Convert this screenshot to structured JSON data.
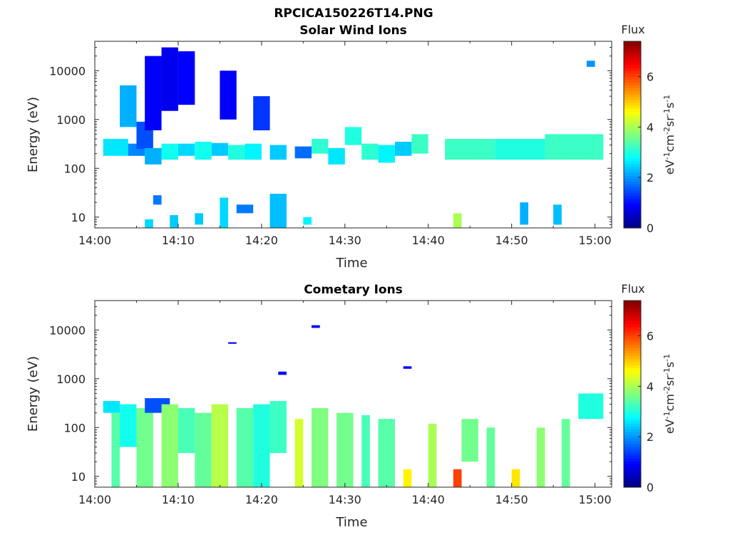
{
  "figure": {
    "title": "RPCICA150226T14.PNG"
  },
  "colorbar": {
    "label": "Flux",
    "unit_parts": [
      "eV",
      "-1",
      "cm",
      "-2",
      "sr",
      "-1",
      "s",
      "-1"
    ],
    "ticks": [
      "0",
      "2",
      "4",
      "6"
    ],
    "range": [
      0,
      7.4
    ],
    "colormap": "jet"
  },
  "chart_data": [
    {
      "type": "heatmap",
      "title": "Solar Wind Ions",
      "xlabel": "Time",
      "ylabel": "Energy (eV)",
      "xtick_labels": [
        "14:00",
        "14:10",
        "14:20",
        "14:30",
        "14:40",
        "14:50",
        "15:00"
      ],
      "ytick_labels": [
        "10",
        "100",
        "1000",
        "10000"
      ],
      "ytick_values": [
        10,
        100,
        1000,
        10000
      ],
      "x_range": [
        "14:00",
        "15:02"
      ],
      "y_range": [
        6,
        40000
      ],
      "y_scale": "log",
      "grid": false,
      "note_values": "flux level 0-7.4, estimated",
      "blocks": [
        {
          "t0": "14:01",
          "t1": "14:04",
          "e0": 180,
          "e1": 400,
          "flux": 2.6
        },
        {
          "t0": "14:03",
          "t1": "14:05",
          "e0": 700,
          "e1": 5000,
          "flux": 2.2
        },
        {
          "t0": "14:04",
          "t1": "14:06",
          "e0": 180,
          "e1": 320,
          "flux": 1.9
        },
        {
          "t0": "14:05",
          "t1": "14:07",
          "e0": 250,
          "e1": 900,
          "flux": 1.5
        },
        {
          "t0": "14:06",
          "t1": "14:08",
          "e0": 600,
          "e1": 20000,
          "flux": 0.9
        },
        {
          "t0": "14:06",
          "t1": "14:08",
          "e0": 120,
          "e1": 260,
          "flux": 2.2
        },
        {
          "t0": "14:06",
          "t1": "14:07",
          "e0": 6,
          "e1": 9,
          "flux": 2.5
        },
        {
          "t0": "14:07",
          "t1": "14:08",
          "e0": 18,
          "e1": 28,
          "flux": 1.8
        },
        {
          "t0": "14:08",
          "t1": "14:10",
          "e0": 150,
          "e1": 320,
          "flux": 2.9
        },
        {
          "t0": "14:08",
          "t1": "14:10",
          "e0": 1500,
          "e1": 30000,
          "flux": 0.8
        },
        {
          "t0": "14:09",
          "t1": "14:10",
          "e0": 6,
          "e1": 11,
          "flux": 2.4
        },
        {
          "t0": "14:10",
          "t1": "14:12",
          "e0": 180,
          "e1": 320,
          "flux": 2.5
        },
        {
          "t0": "14:10",
          "t1": "14:12",
          "e0": 2000,
          "e1": 25000,
          "flux": 0.9
        },
        {
          "t0": "14:12",
          "t1": "14:13",
          "e0": 7,
          "e1": 12,
          "flux": 2.4
        },
        {
          "t0": "14:12",
          "t1": "14:14",
          "e0": 150,
          "e1": 350,
          "flux": 2.9
        },
        {
          "t0": "14:14",
          "t1": "14:16",
          "e0": 180,
          "e1": 330,
          "flux": 2.4
        },
        {
          "t0": "14:15",
          "t1": "14:16",
          "e0": 6,
          "e1": 25,
          "flux": 2.5
        },
        {
          "t0": "14:15",
          "t1": "14:17",
          "e0": 1000,
          "e1": 10000,
          "flux": 0.9
        },
        {
          "t0": "14:16",
          "t1": "14:18",
          "e0": 150,
          "e1": 300,
          "flux": 3.0
        },
        {
          "t0": "14:17",
          "t1": "14:19",
          "e0": 12,
          "e1": 18,
          "flux": 1.8
        },
        {
          "t0": "14:18",
          "t1": "14:20",
          "e0": 150,
          "e1": 320,
          "flux": 2.7
        },
        {
          "t0": "14:19",
          "t1": "14:21",
          "e0": 600,
          "e1": 3000,
          "flux": 1.3
        },
        {
          "t0": "14:21",
          "t1": "14:23",
          "e0": 150,
          "e1": 300,
          "flux": 2.4
        },
        {
          "t0": "14:21",
          "t1": "14:23",
          "e0": 6,
          "e1": 30,
          "flux": 2.3
        },
        {
          "t0": "14:24",
          "t1": "14:26",
          "e0": 160,
          "e1": 280,
          "flux": 1.7
        },
        {
          "t0": "14:25",
          "t1": "14:26",
          "e0": 7,
          "e1": 10,
          "flux": 2.7
        },
        {
          "t0": "14:26",
          "t1": "14:28",
          "e0": 200,
          "e1": 400,
          "flux": 3.1
        },
        {
          "t0": "14:28",
          "t1": "14:30",
          "e0": 120,
          "e1": 260,
          "flux": 2.6
        },
        {
          "t0": "14:30",
          "t1": "14:32",
          "e0": 300,
          "e1": 700,
          "flux": 3.0
        },
        {
          "t0": "14:32",
          "t1": "14:34",
          "e0": 150,
          "e1": 320,
          "flux": 3.1
        },
        {
          "t0": "14:34",
          "t1": "14:36",
          "e0": 130,
          "e1": 300,
          "flux": 2.7
        },
        {
          "t0": "14:36",
          "t1": "14:38",
          "e0": 180,
          "e1": 350,
          "flux": 2.4
        },
        {
          "t0": "14:38",
          "t1": "14:40",
          "e0": 200,
          "e1": 500,
          "flux": 3.2
        },
        {
          "t0": "14:43",
          "t1": "14:44",
          "e0": 6,
          "e1": 12,
          "flux": 4.0
        },
        {
          "t0": "14:42",
          "t1": "14:48",
          "e0": 150,
          "e1": 400,
          "flux": 3.2
        },
        {
          "t0": "14:48",
          "t1": "14:54",
          "e0": 150,
          "e1": 400,
          "flux": 3.0
        },
        {
          "t0": "14:54",
          "t1": "15:01",
          "e0": 150,
          "e1": 500,
          "flux": 3.2
        },
        {
          "t0": "14:51",
          "t1": "14:52",
          "e0": 7,
          "e1": 20,
          "flux": 2.2
        },
        {
          "t0": "14:55",
          "t1": "14:56",
          "e0": 7,
          "e1": 18,
          "flux": 2.3
        },
        {
          "t0": "14:59",
          "t1": "15:00",
          "e0": 12000,
          "e1": 16000,
          "flux": 2.0
        }
      ]
    },
    {
      "type": "heatmap",
      "title": "Cometary Ions",
      "xlabel": "Time",
      "ylabel": "Energy (eV)",
      "xtick_labels": [
        "14:00",
        "14:10",
        "14:20",
        "14:30",
        "14:40",
        "14:50",
        "15:00"
      ],
      "ytick_labels": [
        "10",
        "100",
        "1000",
        "10000"
      ],
      "ytick_values": [
        10,
        100,
        1000,
        10000
      ],
      "x_range": [
        "14:00",
        "15:02"
      ],
      "y_range": [
        6,
        40000
      ],
      "y_scale": "log",
      "grid": false,
      "note_values": "flux level 0-7.4, estimated",
      "blocks": [
        {
          "t0": "14:01",
          "t1": "14:03",
          "e0": 200,
          "e1": 350,
          "flux": 2.6
        },
        {
          "t0": "14:02",
          "t1": "14:03",
          "e0": 6,
          "e1": 200,
          "flux": 3.4
        },
        {
          "t0": "14:03",
          "t1": "14:05",
          "e0": 40,
          "e1": 300,
          "flux": 2.9
        },
        {
          "t0": "14:05",
          "t1": "14:07",
          "e0": 6,
          "e1": 250,
          "flux": 3.6
        },
        {
          "t0": "14:06",
          "t1": "14:09",
          "e0": 200,
          "e1": 400,
          "flux": 1.5
        },
        {
          "t0": "14:08",
          "t1": "14:10",
          "e0": 6,
          "e1": 300,
          "flux": 3.8
        },
        {
          "t0": "14:10",
          "t1": "14:12",
          "e0": 30,
          "e1": 250,
          "flux": 3.3
        },
        {
          "t0": "14:12",
          "t1": "14:14",
          "e0": 6,
          "e1": 200,
          "flux": 3.5
        },
        {
          "t0": "14:14",
          "t1": "14:16",
          "e0": 6,
          "e1": 300,
          "flux": 4.1
        },
        {
          "t0": "14:16",
          "t1": "14:17",
          "e0": 5200,
          "e1": 5600,
          "flux": 1.0
        },
        {
          "t0": "14:17",
          "t1": "14:19",
          "e0": 6,
          "e1": 250,
          "flux": 3.4
        },
        {
          "t0": "14:19",
          "t1": "14:21",
          "e0": 6,
          "e1": 300,
          "flux": 3.0
        },
        {
          "t0": "14:21",
          "t1": "14:23",
          "e0": 30,
          "e1": 350,
          "flux": 3.2
        },
        {
          "t0": "14:22",
          "t1": "14:23",
          "e0": 1200,
          "e1": 1400,
          "flux": 1.0
        },
        {
          "t0": "14:24",
          "t1": "14:25",
          "e0": 6,
          "e1": 150,
          "flux": 4.3
        },
        {
          "t0": "14:26",
          "t1": "14:27",
          "e0": 11000,
          "e1": 12500,
          "flux": 1.0
        },
        {
          "t0": "14:26",
          "t1": "14:28",
          "e0": 6,
          "e1": 250,
          "flux": 3.7
        },
        {
          "t0": "14:29",
          "t1": "14:31",
          "e0": 6,
          "e1": 200,
          "flux": 3.6
        },
        {
          "t0": "14:32",
          "t1": "14:33",
          "e0": 6,
          "e1": 180,
          "flux": 3.3
        },
        {
          "t0": "14:34",
          "t1": "14:36",
          "e0": 6,
          "e1": 150,
          "flux": 3.4
        },
        {
          "t0": "14:37",
          "t1": "14:38",
          "e0": 6,
          "e1": 14,
          "flux": 4.7
        },
        {
          "t0": "14:37",
          "t1": "14:38",
          "e0": 1600,
          "e1": 1800,
          "flux": 1.0
        },
        {
          "t0": "14:40",
          "t1": "14:41",
          "e0": 6,
          "e1": 120,
          "flux": 4.0
        },
        {
          "t0": "14:43",
          "t1": "14:44",
          "e0": 6,
          "e1": 14,
          "flux": 6.0
        },
        {
          "t0": "14:44",
          "t1": "14:46",
          "e0": 20,
          "e1": 150,
          "flux": 3.6
        },
        {
          "t0": "14:47",
          "t1": "14:48",
          "e0": 6,
          "e1": 100,
          "flux": 3.5
        },
        {
          "t0": "14:50",
          "t1": "14:51",
          "e0": 6,
          "e1": 14,
          "flux": 4.8
        },
        {
          "t0": "14:53",
          "t1": "14:54",
          "e0": 6,
          "e1": 100,
          "flux": 3.8
        },
        {
          "t0": "14:56",
          "t1": "14:57",
          "e0": 6,
          "e1": 150,
          "flux": 3.5
        },
        {
          "t0": "14:58",
          "t1": "15:01",
          "e0": 150,
          "e1": 500,
          "flux": 3.0
        }
      ]
    }
  ]
}
